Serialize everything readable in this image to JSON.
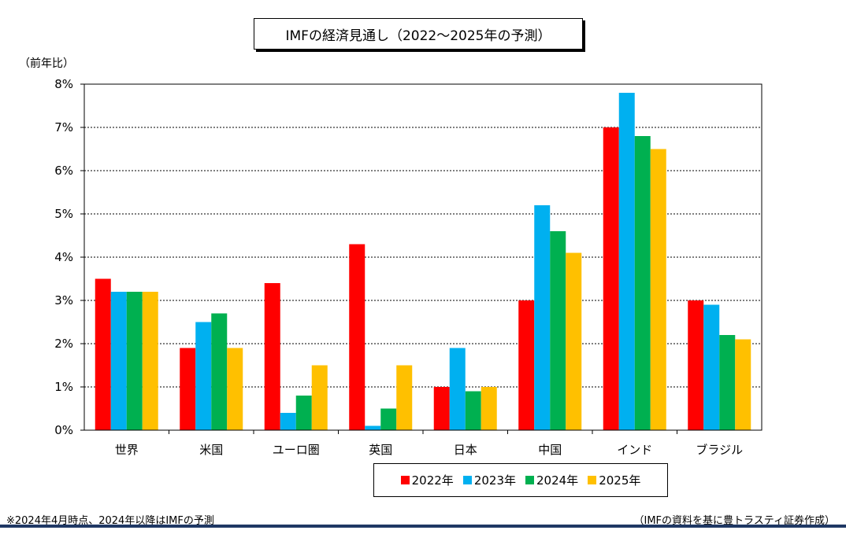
{
  "chart_data": {
    "type": "bar",
    "title": "IMFの経済見通し（2022～2025年の予測）",
    "ylabel": "（前年比）",
    "ylim": [
      0,
      8
    ],
    "yticks": [
      "0%",
      "1%",
      "2%",
      "3%",
      "4%",
      "5%",
      "6%",
      "7%",
      "8%"
    ],
    "grid": true,
    "legend_position": "bottom",
    "categories": [
      "世界",
      "米国",
      "ユーロ圏",
      "英国",
      "日本",
      "中国",
      "インド",
      "ブラジル"
    ],
    "series": [
      {
        "name": "2022年",
        "color": "#ff0000",
        "values": [
          3.5,
          1.9,
          3.4,
          4.3,
          1.0,
          3.0,
          7.0,
          3.0
        ]
      },
      {
        "name": "2023年",
        "color": "#00b0f0",
        "values": [
          3.2,
          2.5,
          0.4,
          0.1,
          1.9,
          5.2,
          7.8,
          2.9
        ]
      },
      {
        "name": "2024年",
        "color": "#00b050",
        "values": [
          3.2,
          2.7,
          0.8,
          0.5,
          0.9,
          4.6,
          6.8,
          2.2
        ]
      },
      {
        "name": "2025年",
        "color": "#ffc000",
        "values": [
          3.2,
          1.9,
          1.5,
          1.5,
          1.0,
          4.1,
          6.5,
          2.1
        ]
      }
    ]
  },
  "footnote": "※2024年4月時点、2024年以降はIMFの予測",
  "source": "（IMFの資料を基に豊トラスティ証券作成）"
}
